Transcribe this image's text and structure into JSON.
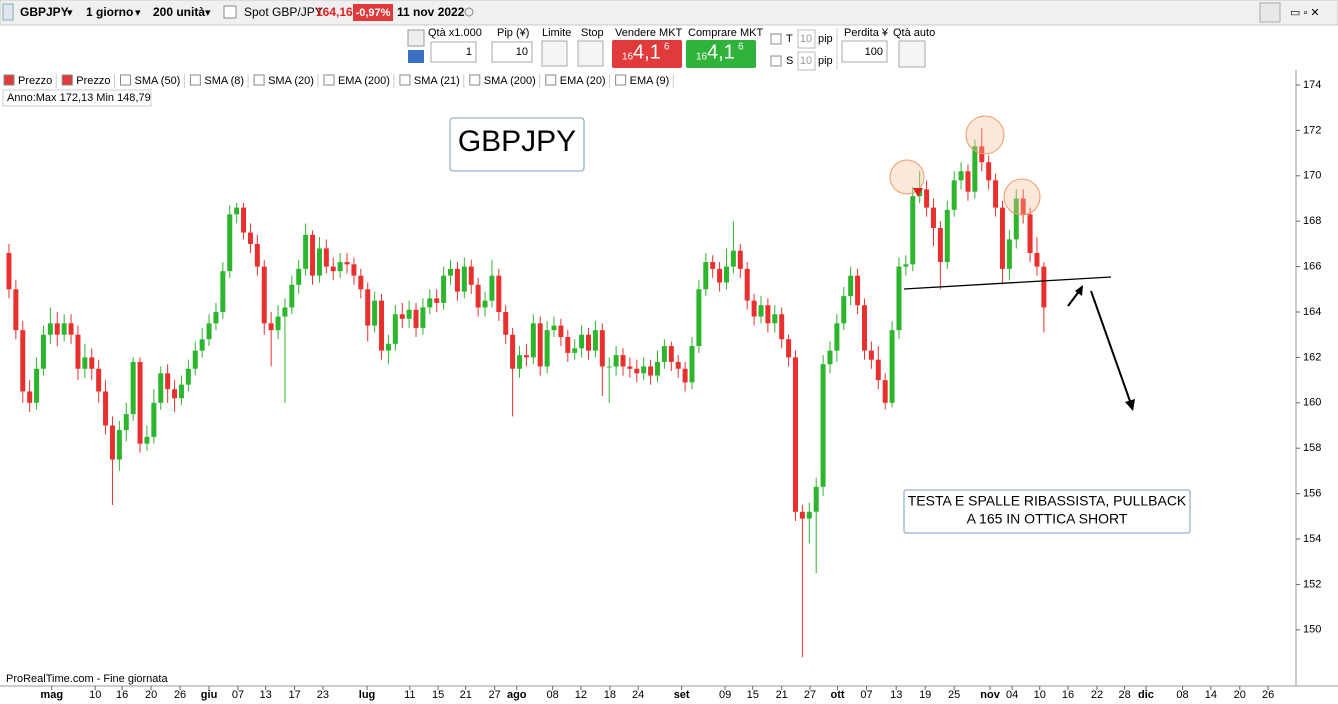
{
  "toolbar": {
    "symbol": "GBPJPY",
    "period": "1 giorno",
    "units": "200 unità",
    "spot_label": "Spot GBP/JPY",
    "price": "164,16",
    "change": "-0,97%",
    "date": "11 nov 2022"
  },
  "order_panel": {
    "qty_label": "Qtà x1.000",
    "qty": "1",
    "pip_label": "Pip (¥)",
    "pip": "10",
    "limit": "Limite",
    "stop": "Stop",
    "sell_label": "Vendere MKT",
    "sell_price": [
      "16",
      "4,1",
      "6"
    ],
    "buy_label": "Comprare MKT",
    "buy_price": [
      "16",
      "4,1",
      "6"
    ],
    "t": "T",
    "t_pip": "10",
    "pip_unit": "pip",
    "s": "S",
    "s_pip": "10",
    "loss_label": "Perdita ¥",
    "loss": "100",
    "auto_qty": "Qtà auto"
  },
  "indicators": [
    "Prezzo",
    "Prezzo",
    "SMA (50)",
    "SMA (8)",
    "SMA (20)",
    "EMA (200)",
    "SMA (21)",
    "SMA (200)",
    "EMA (20)",
    "EMA (9)"
  ],
  "chart_data": {
    "type": "candlestick",
    "title": "GBPJPY",
    "stats": "Anno:Max 172,13 Min 148,79",
    "annotation": [
      "TESTA E SPALLE RIBASSISTA, PULLBACK",
      "A 165 IN OTTICA SHORT"
    ],
    "footer": "ProRealTime.com - Fine giornata",
    "up_color": "#2db52d",
    "down_color": "#e8312f",
    "xlim": [
      -1.3,
      186.4
    ],
    "xticks": [
      {
        "value": 6.2,
        "label": "mag"
      },
      {
        "value": 12.5,
        "label": "10"
      },
      {
        "value": 16.4,
        "label": "16"
      },
      {
        "value": 20.6,
        "label": "20"
      },
      {
        "value": 24.8,
        "label": "26"
      },
      {
        "value": 29.0,
        "label": "giu"
      },
      {
        "value": 33.2,
        "label": "07"
      },
      {
        "value": 37.2,
        "label": "13"
      },
      {
        "value": 41.4,
        "label": "17"
      },
      {
        "value": 45.5,
        "label": "23"
      },
      {
        "value": 51.9,
        "label": "lug"
      },
      {
        "value": 58.1,
        "label": "11"
      },
      {
        "value": 62.2,
        "label": "15"
      },
      {
        "value": 66.2,
        "label": "21"
      },
      {
        "value": 70.4,
        "label": "27"
      },
      {
        "value": 73.6,
        "label": "ago"
      },
      {
        "value": 78.8,
        "label": "08"
      },
      {
        "value": 82.9,
        "label": "12"
      },
      {
        "value": 87.1,
        "label": "18"
      },
      {
        "value": 91.2,
        "label": "24"
      },
      {
        "value": 97.5,
        "label": "set"
      },
      {
        "value": 103.8,
        "label": "09"
      },
      {
        "value": 107.8,
        "label": "15"
      },
      {
        "value": 112.0,
        "label": "21"
      },
      {
        "value": 116.1,
        "label": "27"
      },
      {
        "value": 120.1,
        "label": "ott"
      },
      {
        "value": 124.3,
        "label": "07"
      },
      {
        "value": 128.6,
        "label": "13"
      },
      {
        "value": 132.8,
        "label": "19"
      },
      {
        "value": 137.0,
        "label": "25"
      },
      {
        "value": 142.2,
        "label": "nov"
      },
      {
        "value": 145.4,
        "label": "04"
      },
      {
        "value": 149.4,
        "label": "10"
      },
      {
        "value": 153.5,
        "label": "16"
      },
      {
        "value": 157.7,
        "label": "22"
      },
      {
        "value": 161.7,
        "label": "28"
      },
      {
        "value": 164.8,
        "label": "dic"
      },
      {
        "value": 170.1,
        "label": "08"
      },
      {
        "value": 174.2,
        "label": "14"
      },
      {
        "value": 178.4,
        "label": "20"
      },
      {
        "value": 182.5,
        "label": "26"
      }
    ],
    "ylim": [
      147.57,
      174.66
    ],
    "yticks": [
      150,
      152,
      154,
      156,
      158,
      160,
      162,
      164,
      166,
      168,
      170,
      172,
      174
    ],
    "open": [
      166.6,
      165.0,
      163.2,
      160.5,
      160.0,
      161.5,
      163.0,
      163.5,
      163.0,
      163.5,
      163.0,
      161.5,
      162.0,
      161.5,
      160.5,
      159.0,
      157.5,
      158.8,
      159.5,
      161.8,
      158.2,
      158.5,
      160.0,
      161.3,
      160.6,
      160.2,
      160.8,
      161.5,
      162.3,
      162.8,
      163.5,
      164.0,
      165.8,
      168.3,
      168.6,
      167.5,
      167.0,
      166.0,
      163.5,
      163.2,
      163.8,
      164.2,
      165.2,
      165.9,
      167.4,
      165.6,
      166.8,
      166.0,
      165.8,
      166.2,
      166.1,
      165.6,
      165.0,
      163.4,
      164.5,
      162.3,
      162.6,
      163.9,
      163.7,
      164.1,
      163.3,
      164.2,
      164.6,
      164.4,
      165.6,
      165.9,
      164.9,
      166.0,
      165.2,
      164.2,
      164.5,
      165.6,
      164.0,
      163.0,
      161.5,
      162.1,
      162.0,
      163.5,
      161.6,
      163.2,
      163.4,
      162.9,
      162.2,
      162.4,
      163.0,
      162.3,
      163.2,
      161.6,
      161.6,
      162.1,
      161.6,
      161.5,
      161.3,
      161.6,
      161.2,
      161.8,
      162.5,
      161.8,
      161.5,
      160.9,
      162.5,
      165.0,
      166.2,
      165.9,
      165.3,
      166.0,
      166.7,
      165.9,
      164.5,
      163.8,
      164.3,
      163.5,
      163.9,
      162.8,
      162.0,
      155.2,
      154.9,
      155.2,
      156.3,
      161.7,
      162.3,
      163.5,
      164.7,
      165.6,
      164.3,
      162.3,
      161.9,
      161.0,
      160.0,
      163.2,
      166.0,
      166.1,
      169.1,
      169.4,
      168.6,
      167.7,
      166.2,
      168.5,
      169.8,
      170.2,
      169.3,
      171.3,
      170.6,
      169.8,
      168.6,
      165.9,
      167.2,
      169.0,
      168.3,
      166.6,
      166.0
    ],
    "high": [
      167.0,
      165.4,
      163.6,
      161.0,
      162.0,
      163.4,
      164.2,
      164.0,
      163.9,
      163.9,
      163.4,
      162.6,
      162.4,
      161.9,
      161.0,
      159.4,
      159.2,
      160.0,
      162.0,
      162.0,
      159.0,
      160.6,
      161.6,
      161.7,
      161.0,
      161.2,
      161.9,
      162.7,
      163.3,
      163.9,
      164.4,
      166.2,
      168.7,
      168.8,
      168.8,
      167.9,
      167.4,
      166.3,
      164.0,
      164.3,
      164.6,
      165.6,
      166.3,
      167.9,
      167.6,
      167.3,
      167.2,
      166.4,
      166.6,
      166.6,
      166.4,
      165.9,
      165.3,
      164.9,
      164.8,
      163.0,
      164.3,
      164.4,
      164.5,
      164.4,
      164.6,
      165.0,
      165.0,
      166.0,
      166.3,
      166.2,
      166.4,
      166.3,
      165.5,
      164.9,
      166.3,
      165.9,
      164.3,
      163.3,
      162.5,
      162.6,
      163.9,
      163.8,
      163.6,
      163.8,
      163.7,
      163.2,
      162.8,
      163.4,
      163.3,
      163.6,
      163.5,
      162.0,
      162.5,
      162.4,
      162.0,
      161.9,
      162.0,
      161.9,
      162.3,
      162.8,
      162.7,
      162.1,
      161.8,
      162.9,
      165.4,
      166.6,
      166.5,
      166.2,
      166.8,
      168.0,
      167.0,
      166.2,
      164.8,
      164.7,
      164.6,
      164.3,
      164.2,
      163.0,
      162.3,
      155.5,
      155.6,
      156.7,
      162.1,
      162.7,
      163.9,
      165.1,
      166.0,
      165.9,
      164.6,
      162.7,
      162.5,
      161.3,
      163.6,
      166.4,
      166.5,
      169.5,
      170.2,
      169.8,
      169.0,
      168.0,
      168.9,
      170.2,
      170.6,
      170.5,
      171.6,
      172.1,
      170.9,
      170.1,
      168.9,
      167.6,
      169.4,
      169.4,
      168.6,
      167.3,
      166.2
    ],
    "low": [
      164.6,
      162.8,
      160.0,
      159.6,
      159.7,
      161.2,
      162.6,
      162.5,
      162.7,
      162.6,
      161.0,
      161.1,
      161.0,
      160.0,
      158.6,
      155.5,
      157.0,
      158.3,
      159.2,
      157.8,
      157.9,
      158.2,
      159.7,
      160.0,
      159.6,
      159.9,
      160.5,
      161.2,
      162.0,
      162.5,
      163.2,
      163.7,
      165.5,
      167.9,
      167.2,
      166.6,
      165.6,
      163.0,
      161.6,
      162.8,
      160.0,
      163.9,
      164.8,
      165.6,
      165.2,
      165.3,
      165.7,
      165.4,
      165.5,
      165.7,
      165.2,
      164.6,
      162.7,
      163.1,
      161.9,
      161.7,
      162.3,
      163.3,
      163.3,
      162.9,
      163.0,
      163.9,
      164.0,
      164.1,
      165.2,
      164.5,
      164.6,
      164.8,
      163.8,
      163.8,
      164.2,
      163.6,
      162.6,
      159.4,
      161.1,
      161.6,
      161.7,
      161.2,
      161.3,
      162.9,
      162.5,
      161.8,
      161.9,
      162.0,
      161.9,
      162.0,
      160.3,
      160.0,
      161.2,
      161.2,
      161.1,
      160.9,
      161.0,
      160.8,
      160.9,
      161.5,
      161.4,
      161.1,
      160.5,
      160.6,
      162.2,
      164.7,
      165.5,
      164.9,
      165.0,
      165.7,
      165.5,
      164.1,
      163.4,
      163.5,
      163.1,
      163.1,
      162.4,
      161.6,
      154.8,
      148.8,
      153.8,
      152.5,
      155.9,
      161.3,
      161.8,
      163.2,
      164.3,
      163.9,
      161.9,
      161.5,
      160.6,
      159.7,
      159.8,
      162.8,
      165.6,
      165.8,
      168.8,
      168.2,
      166.9,
      165.0,
      165.9,
      168.2,
      169.4,
      168.9,
      169.0,
      170.2,
      169.4,
      168.2,
      165.2,
      165.4,
      166.8,
      167.9,
      166.2,
      165.6,
      163.1
    ],
    "close": [
      165.0,
      163.2,
      160.5,
      160.0,
      161.5,
      163.0,
      163.5,
      163.0,
      163.5,
      163.0,
      161.5,
      162.0,
      161.5,
      160.5,
      159.0,
      157.5,
      158.8,
      159.5,
      161.8,
      158.2,
      158.5,
      160.0,
      161.3,
      160.6,
      160.2,
      160.8,
      161.5,
      162.3,
      162.8,
      163.5,
      164.0,
      165.8,
      168.3,
      168.6,
      167.5,
      167.0,
      166.0,
      163.5,
      163.2,
      163.8,
      164.2,
      165.2,
      165.9,
      167.4,
      165.6,
      166.8,
      166.0,
      165.8,
      166.2,
      166.1,
      165.6,
      165.0,
      163.4,
      164.5,
      162.3,
      162.6,
      163.9,
      163.7,
      164.1,
      163.3,
      164.2,
      164.6,
      164.4,
      165.6,
      165.9,
      164.9,
      166.0,
      165.2,
      164.2,
      164.5,
      165.6,
      164.0,
      163.0,
      161.5,
      162.1,
      162.0,
      163.5,
      161.6,
      163.2,
      163.4,
      162.9,
      162.2,
      162.4,
      163.0,
      162.3,
      163.2,
      161.6,
      161.6,
      162.1,
      161.6,
      161.5,
      161.3,
      161.6,
      161.2,
      161.8,
      162.5,
      161.8,
      161.5,
      160.9,
      162.5,
      165.0,
      166.2,
      165.9,
      165.3,
      166.0,
      166.7,
      165.9,
      164.5,
      163.8,
      164.3,
      163.5,
      163.9,
      162.8,
      162.0,
      155.2,
      154.9,
      155.2,
      156.3,
      161.7,
      162.3,
      163.5,
      164.7,
      165.6,
      164.3,
      162.3,
      161.9,
      161.0,
      160.0,
      163.2,
      166.0,
      166.1,
      169.1,
      169.4,
      168.6,
      167.7,
      166.2,
      168.5,
      169.8,
      170.2,
      169.3,
      171.3,
      170.6,
      169.8,
      168.6,
      165.9,
      167.2,
      169.0,
      168.3,
      166.6,
      166.0,
      164.2
    ]
  }
}
